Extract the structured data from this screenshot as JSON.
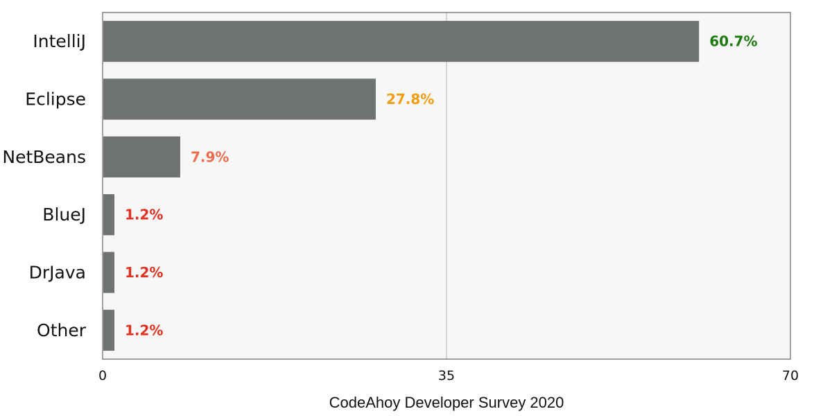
{
  "chart_data": {
    "type": "bar",
    "orientation": "horizontal",
    "categories": [
      "IntelliJ",
      "Eclipse",
      "NetBeans",
      "BlueJ",
      "DrJava",
      "Other"
    ],
    "values": [
      60.7,
      27.8,
      7.9,
      1.2,
      1.2,
      1.2
    ],
    "value_labels": [
      "60.7%",
      "27.8%",
      "7.9%",
      "1.2%",
      "1.2%",
      "1.2%"
    ],
    "label_colors": [
      "#1e7a10",
      "#f39c12",
      "#ee6c4d",
      "#e03020",
      "#e03020",
      "#e03020"
    ],
    "bar_color": "#6e7370",
    "plot_background": "#f7f7f7",
    "xlim": [
      0,
      70
    ],
    "xticks": [
      "0",
      "35",
      "70"
    ],
    "xtick_values": [
      0,
      35,
      70
    ],
    "xlabel": "CodeAhoy Developer Survey 2020",
    "ylabel": "",
    "title": "",
    "grid": "vertical at 35",
    "legend": "none"
  }
}
